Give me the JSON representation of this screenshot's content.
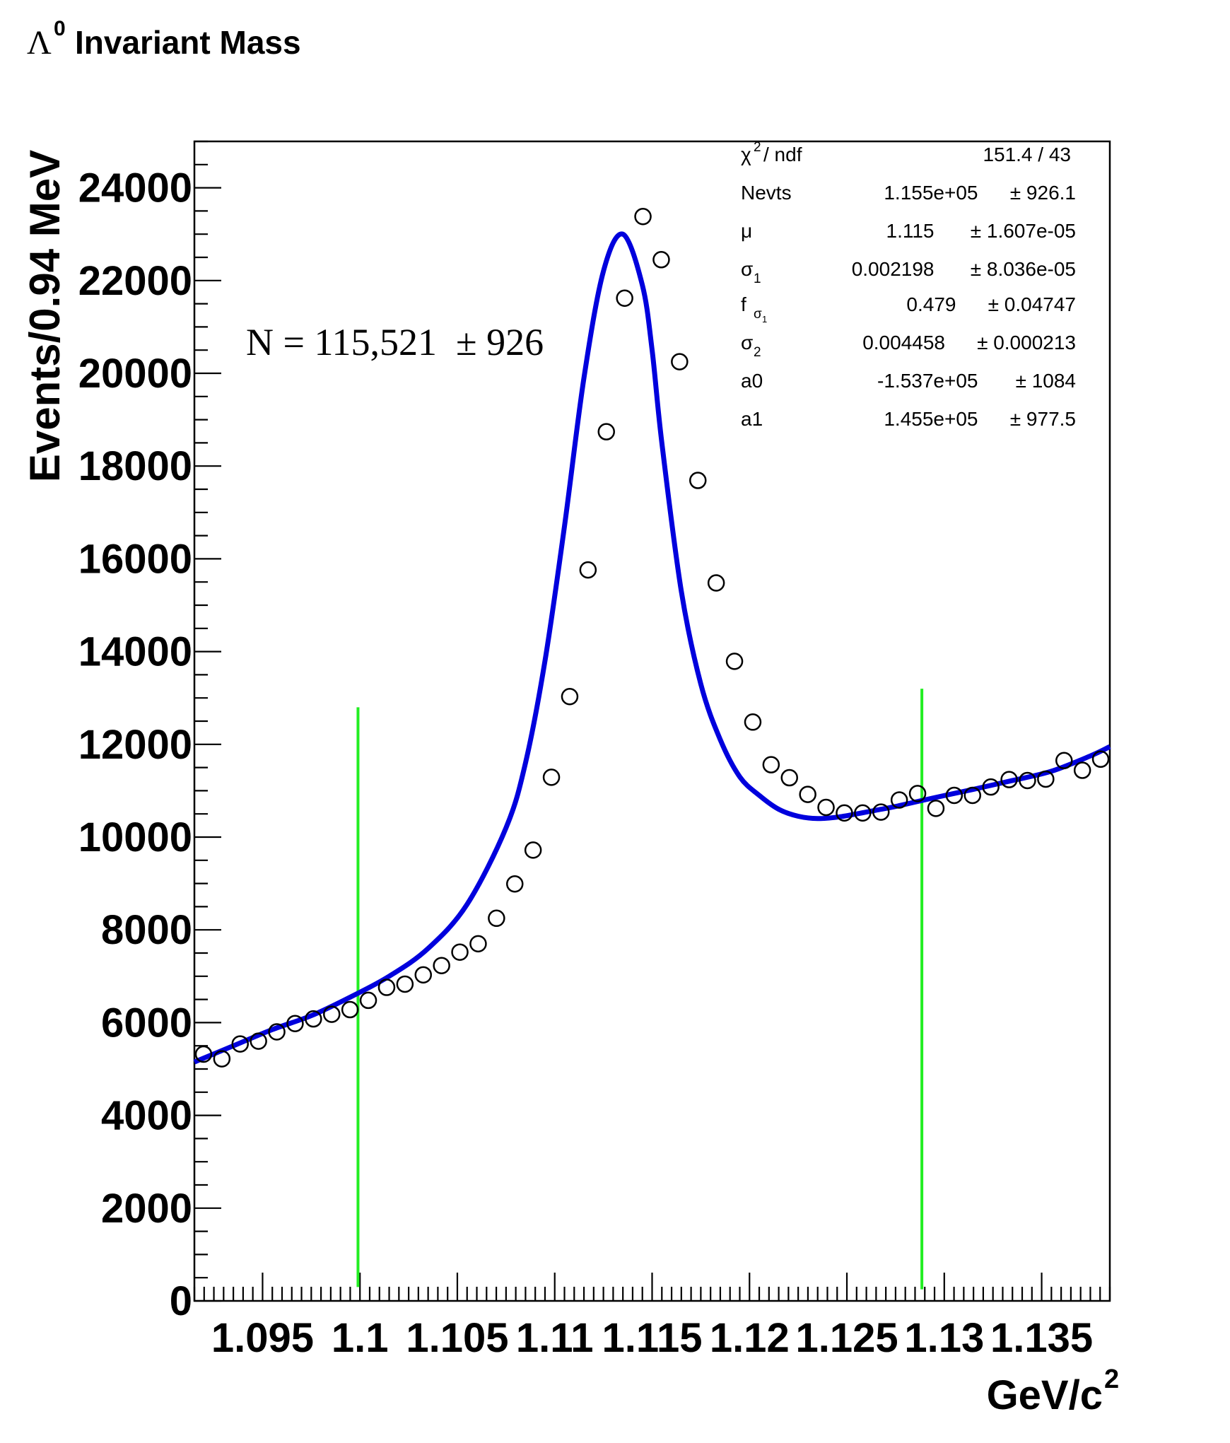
{
  "chart_data": {
    "type": "scatter",
    "title": "Invariant Mass",
    "title_symbol": "Λ",
    "title_superscript": "0",
    "ylabel": "Events/0.94 MeV",
    "xlabel": "GeV/c",
    "xlabel_superscript": "2",
    "xlim": [
      1.0915,
      1.1385
    ],
    "ylim": [
      0,
      25000
    ],
    "x_ticks": [
      1.095,
      1.1,
      1.105,
      1.11,
      1.115,
      1.12,
      1.125,
      1.13,
      1.135
    ],
    "x_tick_labels": [
      "1.095",
      "1.1",
      "1.105",
      "1.11",
      "1.115",
      "1.12",
      "1.125",
      "1.13",
      "1.135"
    ],
    "y_ticks": [
      0,
      2000,
      4000,
      6000,
      8000,
      10000,
      12000,
      14000,
      16000,
      18000,
      20000,
      22000,
      24000
    ],
    "y_tick_labels": [
      "0",
      "2000",
      "4000",
      "6000",
      "8000",
      "10000",
      "12000",
      "14000",
      "16000",
      "18000",
      "20000",
      "22000",
      "24000"
    ],
    "grid": false,
    "legend": "none",
    "annotation": "N = 115,521  ± 926",
    "series": [
      {
        "kind": "points",
        "marker": "open-circle",
        "color": "#000000",
        "x": [
          1.09197,
          1.09291,
          1.09385,
          1.09479,
          1.09573,
          1.09667,
          1.09761,
          1.09855,
          1.09949,
          1.10043,
          1.10137,
          1.10231,
          1.10325,
          1.10419,
          1.10513,
          1.10607,
          1.10701,
          1.10795,
          1.10889,
          1.10983,
          1.11077,
          1.11171,
          1.11265,
          1.11359,
          1.11453,
          1.11547,
          1.11641,
          1.11735,
          1.11829,
          1.11923,
          1.12017,
          1.12111,
          1.12205,
          1.12299,
          1.12393,
          1.12487,
          1.12581,
          1.12675,
          1.12769,
          1.12863,
          1.12957,
          1.13051,
          1.13145,
          1.13239,
          1.13333,
          1.13427,
          1.13521,
          1.13615,
          1.13709,
          1.13803
        ],
        "y": [
          5320,
          5220,
          5540,
          5600,
          5800,
          5980,
          6080,
          6180,
          6280,
          6480,
          6760,
          6830,
          7030,
          7230,
          7520,
          7700,
          8250,
          8990,
          9720,
          11290,
          13030,
          15760,
          18740,
          21620,
          23380,
          22450,
          20250,
          17690,
          15480,
          13790,
          12480,
          11560,
          11280,
          10920,
          10640,
          10520,
          10520,
          10540,
          10800,
          10940,
          10620,
          10900,
          10900,
          11080,
          11240,
          11220,
          11250,
          11650,
          11440,
          11680
        ]
      },
      {
        "kind": "fit",
        "color": "#0000dd",
        "x": [
          1.0915,
          1.0935,
          1.0955,
          1.0975,
          1.0995,
          1.1015,
          1.1035,
          1.1055,
          1.1075,
          1.1085,
          1.1095,
          1.1105,
          1.1115,
          1.1125,
          1.1135,
          1.1145,
          1.115,
          1.1155,
          1.1165,
          1.1175,
          1.1185,
          1.1195,
          1.1205,
          1.1215,
          1.1225,
          1.1235,
          1.1245,
          1.1255,
          1.1265,
          1.1275,
          1.1295,
          1.1315,
          1.1335,
          1.1355,
          1.1375,
          1.1385
        ],
        "y": [
          5150,
          5500,
          5850,
          6150,
          6550,
          7000,
          7600,
          8550,
          10200,
          11600,
          13800,
          16700,
          19900,
          22200,
          23000,
          21900,
          20500,
          18500,
          15300,
          13300,
          12100,
          11300,
          10900,
          10600,
          10450,
          10400,
          10430,
          10500,
          10580,
          10660,
          10850,
          11030,
          11220,
          11420,
          11750,
          11950
        ]
      },
      {
        "kind": "vline",
        "color": "#22ee22",
        "x": 1.0999,
        "y_range": [
          300,
          12800
        ]
      },
      {
        "kind": "vline",
        "color": "#22ee22",
        "x": 1.12885,
        "y_range": [
          250,
          13200
        ]
      }
    ],
    "stats_box": {
      "rows": [
        {
          "label": "χ",
          "label_sup": "2",
          "label_rest": " / ndf",
          "value": "151.4 / 43",
          "error": ""
        },
        {
          "label": "Nevts",
          "value": "1.155e+05",
          "error": "± 926.1"
        },
        {
          "label": "μ",
          "value": "1.115",
          "error": "± 1.607e-05"
        },
        {
          "label": "σ",
          "label_sub": "1",
          "value": "0.002198",
          "error": "± 8.036e-05"
        },
        {
          "label": "f",
          "label_sub": "σ",
          "label_subsub": "1",
          "value": "0.479",
          "error": "± 0.04747"
        },
        {
          "label": "σ",
          "label_sub": "2",
          "value": "0.004458",
          "error": "± 0.000213"
        },
        {
          "label": "a0",
          "value": "-1.537e+05",
          "error": "±  1084"
        },
        {
          "label": "a1",
          "value": "1.455e+05",
          "error": "± 977.5"
        }
      ]
    }
  }
}
